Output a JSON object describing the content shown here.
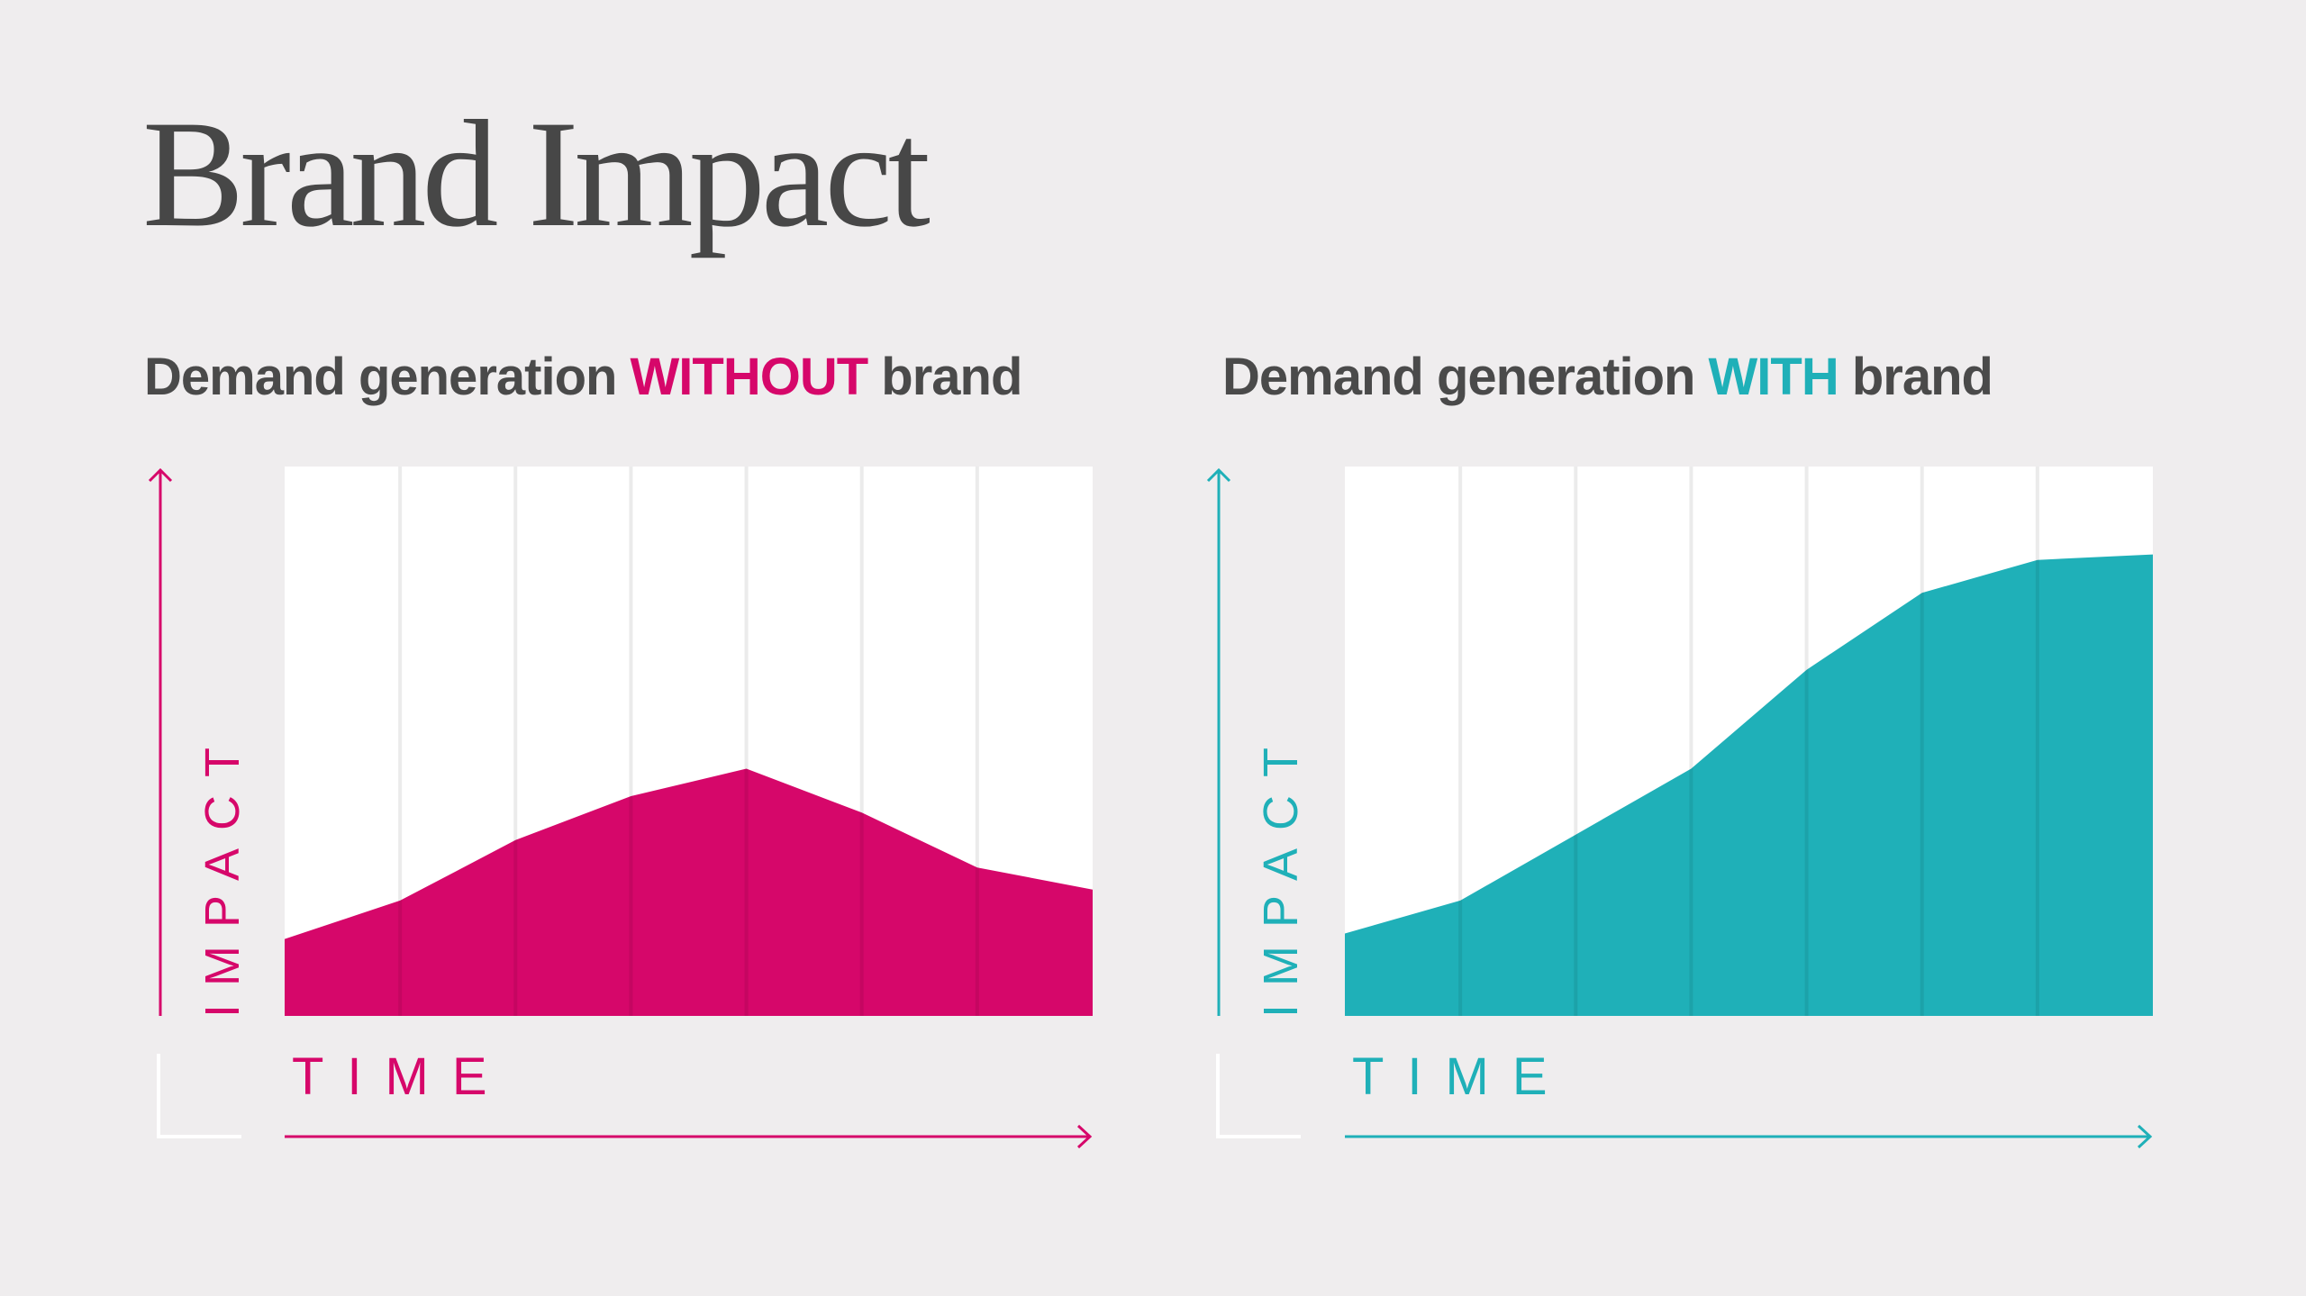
{
  "title": "Brand Impact",
  "colors": {
    "background": "#efedee",
    "title": "#474747",
    "without_brand": "#d6076a",
    "with_brand": "#1fb0b8",
    "plot_bg": "#ffffff",
    "gridline": "#e8e8e8",
    "corner_line": "#ffffff"
  },
  "chart_data": [
    {
      "type": "area",
      "title_parts": [
        "Demand generation ",
        "WITHOUT",
        " brand"
      ],
      "xlabel": "TIME",
      "ylabel": "IMPACT",
      "x": [
        0,
        1,
        2,
        3,
        4,
        5,
        6,
        7
      ],
      "values": [
        14,
        21,
        32,
        40,
        45,
        37,
        27,
        23
      ],
      "xlim": [
        0,
        7
      ],
      "ylim": [
        0,
        100
      ],
      "grid": true,
      "color": "#d6076a"
    },
    {
      "type": "area",
      "title_parts": [
        "Demand generation ",
        "WITH",
        " brand"
      ],
      "xlabel": "TIME",
      "ylabel": "IMPACT",
      "x": [
        0,
        1,
        2,
        3,
        4,
        5,
        6,
        7
      ],
      "values": [
        15,
        21,
        33,
        45,
        63,
        77,
        83,
        84
      ],
      "xlim": [
        0,
        7
      ],
      "ylim": [
        0,
        100
      ],
      "grid": true,
      "color": "#1fb0b8"
    }
  ]
}
